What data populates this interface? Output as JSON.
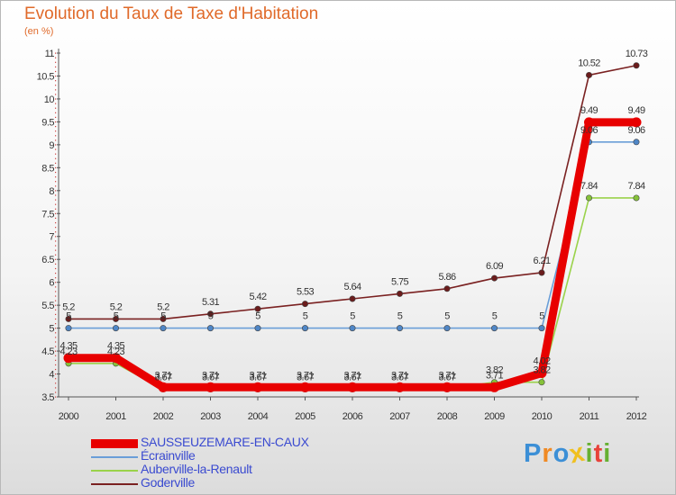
{
  "title": "Evolution du Taux de Taxe d'Habitation",
  "unit_label": "(en %)",
  "logo_text": "Proxiti",
  "logo_colors": [
    "#3c8fd6",
    "#f08a24",
    "#3c8fd6",
    "#f0c020",
    "#66b032",
    "#e8423a",
    "#66b032"
  ],
  "chart_data": {
    "type": "line",
    "x": [
      "2000",
      "2001",
      "2002",
      "2003",
      "2004",
      "2005",
      "2006",
      "2007",
      "2008",
      "2009",
      "2010",
      "2011",
      "2012"
    ],
    "ylim": [
      3.5,
      11
    ],
    "yticks": [
      3.5,
      4,
      4.5,
      5,
      5.5,
      6,
      6.5,
      7,
      7.5,
      8,
      8.5,
      9,
      9.5,
      10,
      10.5,
      11
    ],
    "grid": false,
    "legend_position": "bottom-left",
    "series": [
      {
        "name": "Goderville",
        "color": "#7a2121",
        "marker_fill": "#6b1c1c",
        "values": [
          5.2,
          5.2,
          5.2,
          5.31,
          5.42,
          5.53,
          5.64,
          5.75,
          5.86,
          6.09,
          6.21,
          10.52,
          10.73
        ],
        "labels": [
          "5.2",
          "5.2",
          "5.2",
          "5.31",
          "5.42",
          "5.53",
          "5.64",
          "5.75",
          "5.86",
          "6.09",
          "6.21",
          "10.52",
          "10.73"
        ]
      },
      {
        "name": "Écrainville",
        "color": "#6a9ed8",
        "marker_fill": "#4f86c6",
        "values": [
          5,
          5,
          5,
          5,
          5,
          5,
          5,
          5,
          5,
          5,
          5,
          9.06,
          9.06
        ],
        "labels": [
          "5",
          "5",
          "5",
          "5",
          "5",
          "5",
          "5",
          "5",
          "5",
          "5",
          "5",
          "9.06",
          "9.06"
        ]
      },
      {
        "name": "Auberville-la-Renault",
        "color": "#9ad24a",
        "marker_fill": "#86c23a",
        "values": [
          4.23,
          4.23,
          3.67,
          3.67,
          3.67,
          3.67,
          3.67,
          3.67,
          3.67,
          3.82,
          3.82,
          7.84,
          7.84
        ],
        "labels": [
          "4.23",
          "4.23",
          "3.67",
          "3.67",
          "3.67",
          "3.67",
          "3.67",
          "3.67",
          "3.67",
          "3.82",
          "3.82",
          "7.84",
          "7.84"
        ]
      },
      {
        "name": "SAUSSEUZEMARE-EN-CAUX",
        "color": "#e80000",
        "marker_fill": "#e80000",
        "values": [
          4.35,
          4.35,
          3.71,
          3.71,
          3.71,
          3.71,
          3.71,
          3.71,
          3.71,
          3.71,
          4.02,
          9.49,
          9.49
        ],
        "labels": [
          "4.35",
          "4.35",
          "3.71",
          "3.71",
          "3.71",
          "3.71",
          "3.71",
          "3.71",
          "3.71",
          "3.71",
          "4.02",
          "9.49",
          "9.49"
        ]
      }
    ],
    "legend": [
      {
        "name": "SAUSSEUZEMARE-EN-CAUX",
        "color": "#e80000"
      },
      {
        "name": "Écrainville",
        "color": "#6a9ed8"
      },
      {
        "name": "Auberville-la-Renault",
        "color": "#9ad24a"
      },
      {
        "name": "Goderville",
        "color": "#7a2121"
      }
    ]
  }
}
